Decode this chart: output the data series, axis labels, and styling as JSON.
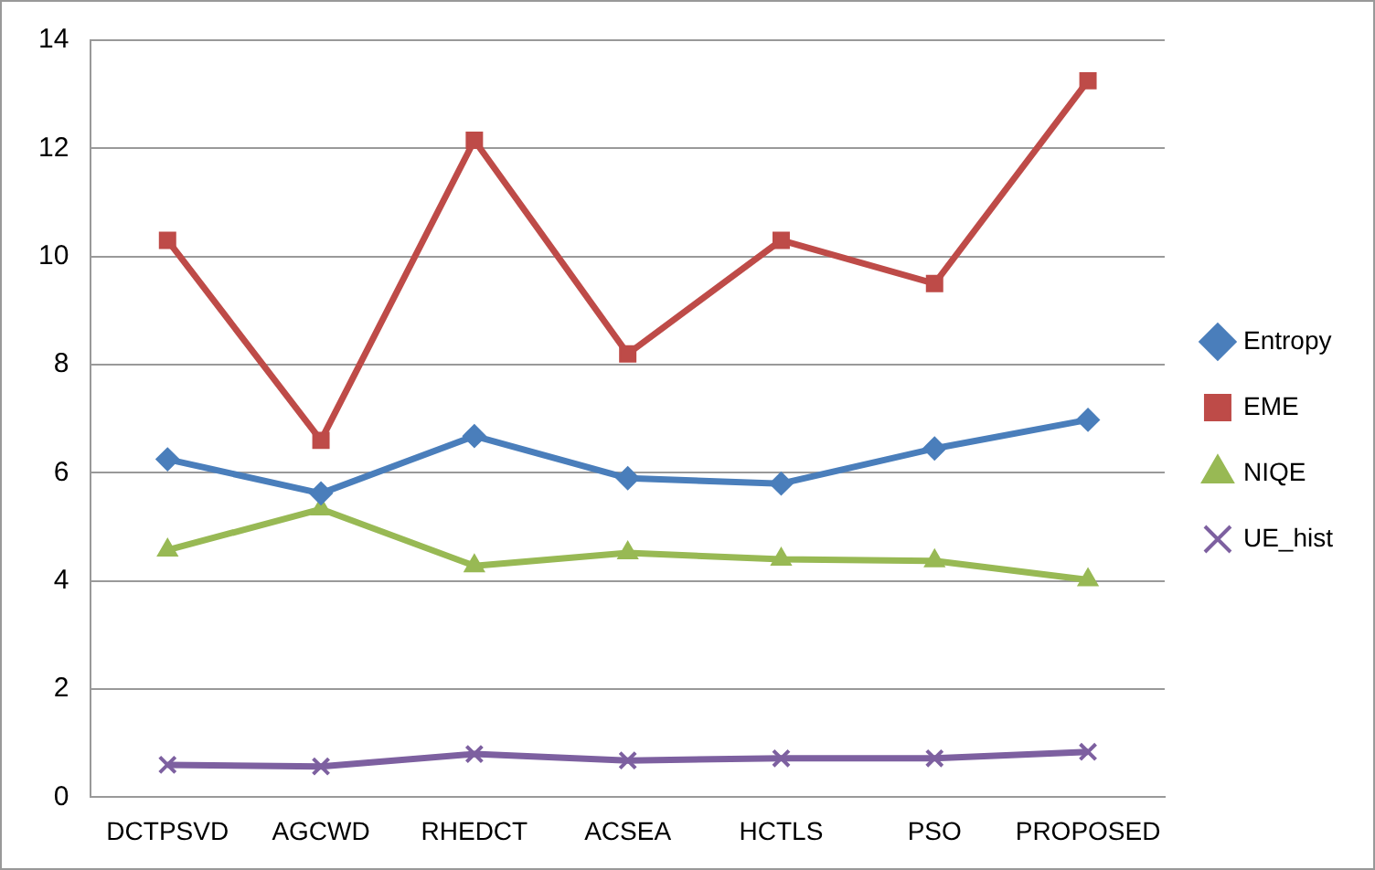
{
  "chart_data": {
    "type": "line",
    "categories": [
      "DCTPSVD",
      "AGCWD",
      "RHEDCT",
      "ACSEA",
      "HCTLS",
      "PSO",
      "PROPOSED"
    ],
    "series": [
      {
        "name": "Entropy",
        "color": "#4a7ebb",
        "marker": "diamond",
        "values": [
          6.25,
          5.62,
          6.68,
          5.9,
          5.8,
          6.45,
          6.98
        ]
      },
      {
        "name": "EME",
        "color": "#be4b48",
        "marker": "square",
        "values": [
          10.3,
          6.6,
          12.15,
          8.2,
          10.3,
          9.5,
          13.25
        ]
      },
      {
        "name": "NIQE",
        "color": "#98b954",
        "marker": "triangle",
        "values": [
          4.57,
          5.33,
          4.28,
          4.52,
          4.4,
          4.37,
          4.02
        ]
      },
      {
        "name": "UE_hist",
        "color": "#7d60a0",
        "marker": "cross",
        "values": [
          0.6,
          0.57,
          0.8,
          0.68,
          0.72,
          0.72,
          0.84
        ]
      }
    ],
    "ylim": [
      0,
      14
    ],
    "yticks": [
      0,
      2,
      4,
      6,
      8,
      10,
      12,
      14
    ],
    "grid": "y",
    "legend": "right"
  }
}
